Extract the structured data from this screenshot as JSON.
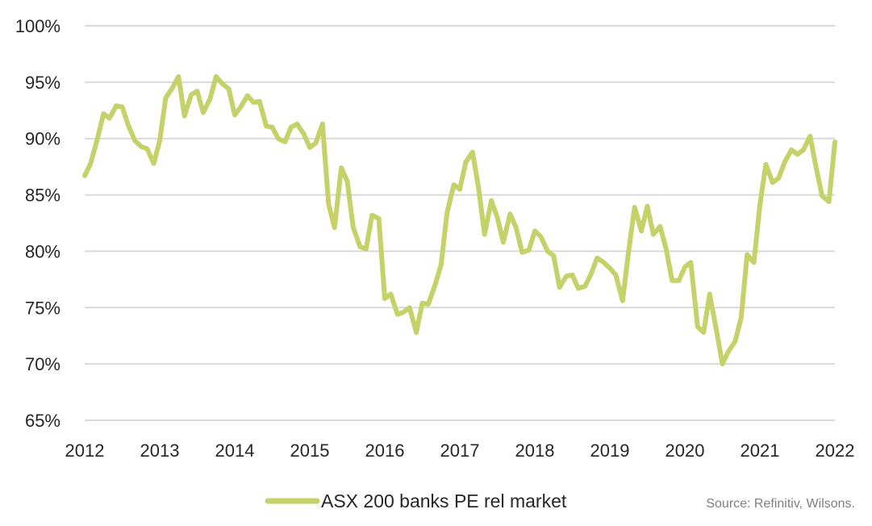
{
  "source_note": "Source: Refinitiv, Wilsons.",
  "chart_data": {
    "type": "line",
    "title": "",
    "xlabel": "",
    "ylabel": "",
    "xlim": [
      2012,
      2022
    ],
    "ylim": [
      65,
      100
    ],
    "x_ticks": [
      2012,
      2013,
      2014,
      2015,
      2016,
      2017,
      2018,
      2019,
      2020,
      2021,
      2022
    ],
    "x_tick_labels": [
      "2012",
      "2013",
      "2014",
      "2015",
      "2016",
      "2017",
      "2018",
      "2019",
      "2020",
      "2021",
      "2022"
    ],
    "y_ticks": [
      65,
      70,
      75,
      80,
      85,
      90,
      95,
      100
    ],
    "y_tick_labels": [
      "65%",
      "70%",
      "75%",
      "80%",
      "85%",
      "90%",
      "95%",
      "100%"
    ],
    "grid": "horizontal",
    "legend_position": "bottom",
    "series": [
      {
        "name": "ASX 200 banks PE rel market",
        "color": "#c5d26a",
        "x": [
          2012.0,
          2012.08,
          2012.17,
          2012.25,
          2012.33,
          2012.42,
          2012.5,
          2012.58,
          2012.67,
          2012.75,
          2012.83,
          2012.92,
          2013.0,
          2013.08,
          2013.17,
          2013.25,
          2013.33,
          2013.42,
          2013.5,
          2013.58,
          2013.67,
          2013.75,
          2013.83,
          2013.92,
          2014.0,
          2014.08,
          2014.17,
          2014.25,
          2014.33,
          2014.42,
          2014.5,
          2014.58,
          2014.67,
          2014.75,
          2014.83,
          2014.92,
          2015.0,
          2015.08,
          2015.17,
          2015.25,
          2015.33,
          2015.42,
          2015.5,
          2015.58,
          2015.67,
          2015.75,
          2015.83,
          2015.92,
          2016.0,
          2016.08,
          2016.17,
          2016.25,
          2016.33,
          2016.42,
          2016.5,
          2016.58,
          2016.67,
          2016.75,
          2016.83,
          2016.92,
          2017.0,
          2017.08,
          2017.17,
          2017.25,
          2017.33,
          2017.42,
          2017.5,
          2017.58,
          2017.67,
          2017.75,
          2017.83,
          2017.92,
          2018.0,
          2018.08,
          2018.17,
          2018.25,
          2018.33,
          2018.42,
          2018.5,
          2018.58,
          2018.67,
          2018.75,
          2018.83,
          2018.92,
          2019.0,
          2019.08,
          2019.17,
          2019.25,
          2019.33,
          2019.42,
          2019.5,
          2019.58,
          2019.67,
          2019.75,
          2019.83,
          2019.92,
          2020.0,
          2020.08,
          2020.17,
          2020.25,
          2020.33,
          2020.42,
          2020.5,
          2020.58,
          2020.67,
          2020.75,
          2020.83,
          2020.92,
          2021.0,
          2021.08,
          2021.17,
          2021.25,
          2021.33,
          2021.42,
          2021.5,
          2021.58,
          2021.67,
          2021.75,
          2021.83,
          2021.92,
          2022.0
        ],
        "values": [
          86.7,
          87.8,
          90.0,
          92.2,
          91.8,
          92.9,
          92.8,
          91.2,
          89.8,
          89.3,
          89.1,
          87.8,
          89.8,
          93.6,
          94.5,
          95.5,
          92.0,
          93.9,
          94.2,
          92.3,
          93.5,
          95.5,
          94.9,
          94.4,
          92.1,
          92.8,
          93.8,
          93.2,
          93.3,
          91.1,
          91.0,
          90.0,
          89.7,
          91.0,
          91.3,
          90.4,
          89.2,
          89.6,
          91.3,
          84.2,
          82.1,
          87.4,
          86.2,
          82.1,
          80.4,
          80.2,
          83.2,
          82.9,
          75.8,
          76.2,
          74.4,
          74.6,
          75.0,
          72.8,
          75.4,
          75.3,
          77.0,
          78.8,
          83.4,
          85.9,
          85.5,
          87.9,
          88.8,
          85.6,
          81.5,
          84.5,
          83.0,
          80.8,
          83.3,
          82.1,
          79.9,
          80.1,
          81.8,
          81.3,
          80.0,
          79.6,
          76.8,
          77.8,
          77.9,
          76.7,
          76.9,
          78.0,
          79.4,
          79.0,
          78.5,
          77.9,
          75.6,
          80.0,
          83.9,
          81.8,
          84.0,
          81.5,
          82.2,
          80.2,
          77.4,
          77.4,
          78.6,
          79.0,
          73.3,
          72.8,
          76.2,
          73.0,
          70.0,
          71.1,
          72.0,
          74.1,
          79.7,
          79.0,
          84.1,
          87.7,
          86.1,
          86.5,
          87.9,
          89.0,
          88.6,
          89.0,
          90.2,
          87.4,
          84.9,
          84.4,
          89.7
        ]
      }
    ]
  }
}
